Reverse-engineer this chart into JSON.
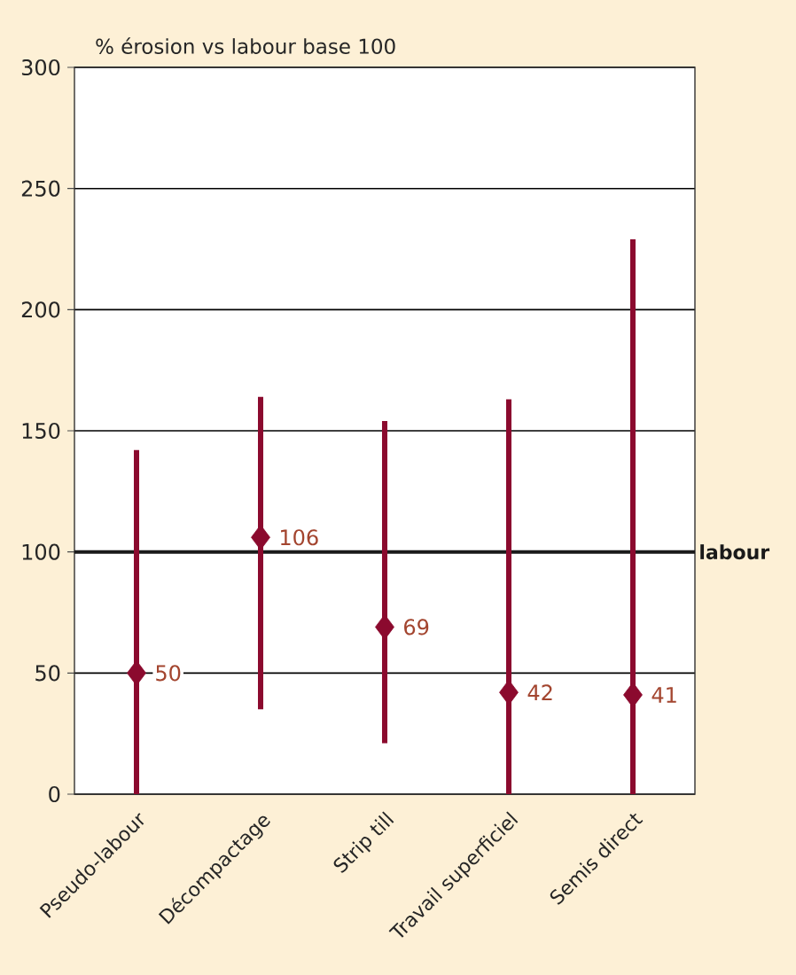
{
  "chart_data": {
    "type": "scatter",
    "ylabel": "% érosion vs labour base 100",
    "categories": [
      "Pseudo-labour",
      "Décompactage",
      "Strip till",
      "Travail superficiel",
      "Semis direct"
    ],
    "values": [
      50,
      106,
      69,
      42,
      41
    ],
    "errors": [
      [
        0,
        142
      ],
      [
        35,
        164
      ],
      [
        21,
        154
      ],
      [
        0,
        163
      ],
      [
        0,
        229
      ]
    ],
    "color": "#8b0a2e",
    "marker": "diamond",
    "data_labels": true,
    "ylim": [
      0,
      300
    ],
    "yticks": [
      0,
      50,
      100,
      150,
      200,
      250,
      300
    ],
    "grid": "y",
    "ref_lines": [
      {
        "axis": "y",
        "value": 100,
        "label": "labour",
        "color": "#1a1a1a"
      }
    ]
  }
}
